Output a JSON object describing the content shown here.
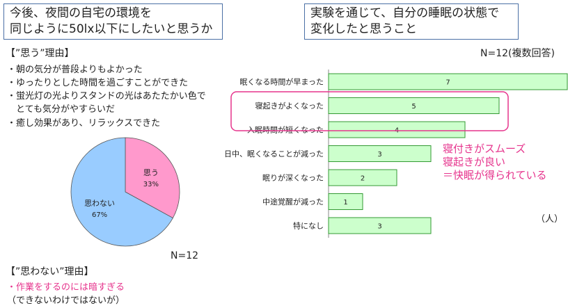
{
  "left": {
    "title_lines": [
      "今後、夜間の自宅の環境を",
      "同じように50lx以下にしたいと思うか"
    ],
    "yes_header": "【”思う”理由】",
    "yes_reasons": [
      "・朝の気分が普段よりもよかった",
      "・ゆったりとした時間を過ごすことができた",
      "・蛍光灯の光よりスタンドの光はあたたかい色で",
      "　とても気分がやすらいだ",
      "・癒し効果があり、リラックスできた"
    ],
    "n_label": "N=12",
    "no_header": "【”思わない”理由】",
    "no_reasons": [
      "・作業をするのには暗すぎる",
      "（できないわけではないが）"
    ]
  },
  "right": {
    "title_lines": [
      "実験を通じて、自分の睡眠の状態で",
      "変化したと思うこと"
    ],
    "n_label": "N=12(複数回答)",
    "unit_label": "（人）",
    "annotation_lines": [
      "寝付きがスムーズ",
      "寝起きが良い",
      "＝快眠が得られている"
    ]
  },
  "colors": {
    "bar": "#ccffcc",
    "bar_border": "#339933",
    "pie_yes": "#ff99cc",
    "pie_no": "#99ccff",
    "highlight": "#e6338c",
    "title_border": "#4a6fa5"
  },
  "chart_data": [
    {
      "type": "pie",
      "labels": [
        "思う",
        "思わない"
      ],
      "values": [
        33,
        67
      ],
      "value_labels": [
        "33%",
        "67%"
      ]
    },
    {
      "type": "bar",
      "orientation": "horizontal",
      "categories": [
        "眠くなる時間が早まった",
        "寝起きがよくなった",
        "入眠時間が短くなった",
        "日中、眠くなることが減った",
        "眠りが深くなった",
        "中途覚醒が減った",
        "特になし"
      ],
      "values": [
        7,
        5,
        4,
        3,
        2,
        1,
        3
      ],
      "highlighted_categories": [
        "寝起きがよくなった",
        "入眠時間が短くなった"
      ]
    }
  ]
}
